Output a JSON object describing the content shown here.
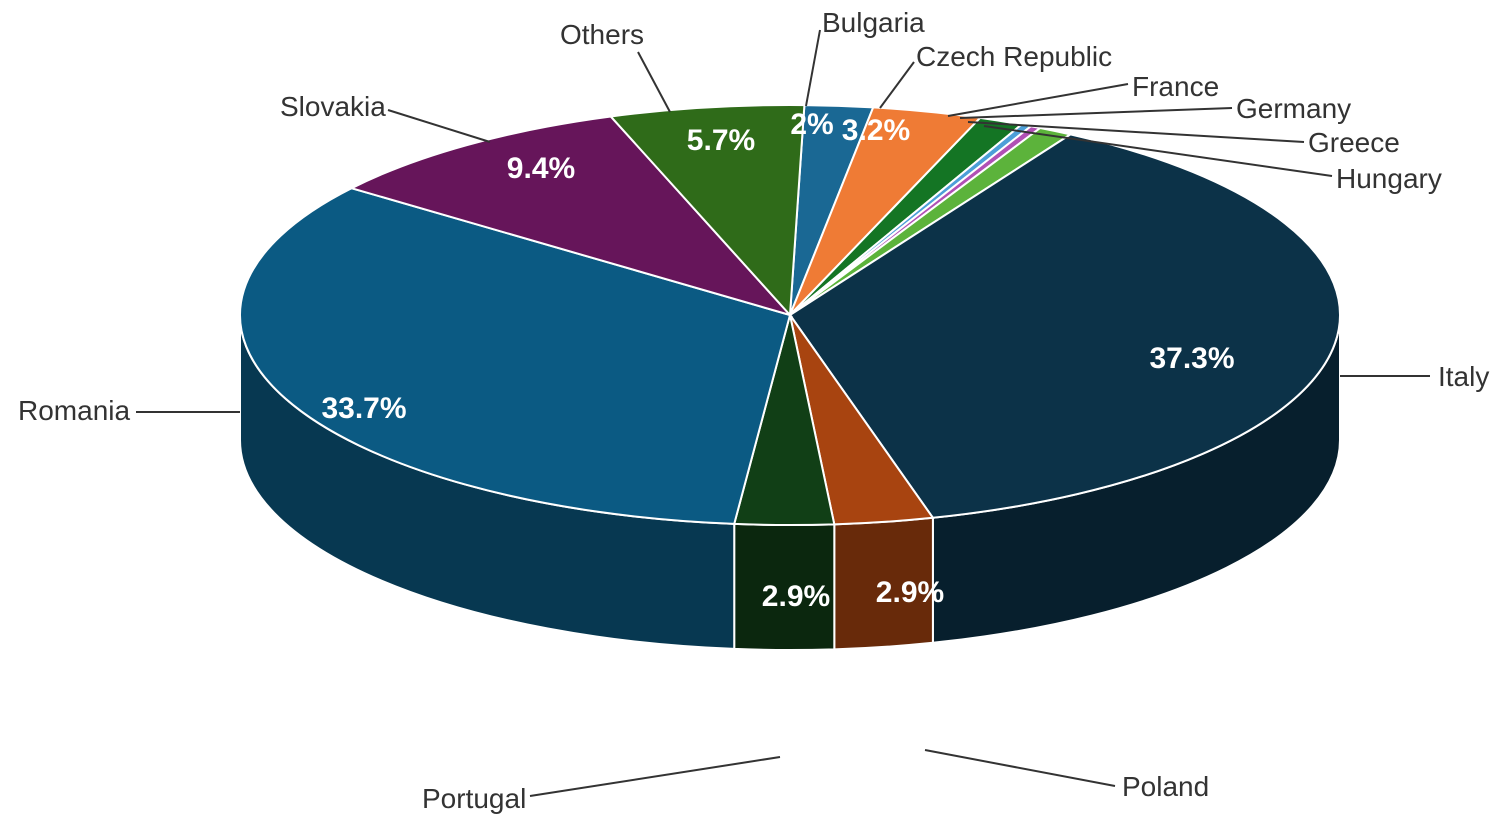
{
  "chart_data": {
    "type": "pie",
    "title": "",
    "legend": "none",
    "slices": [
      {
        "name": "Italy",
        "value": 37.3,
        "color": "#0c3248",
        "label": "37.3%"
      },
      {
        "name": "Poland",
        "value": 2.9,
        "color": "#a84410",
        "label": "2.9%"
      },
      {
        "name": "Portugal",
        "value": 2.9,
        "color": "#113f16",
        "label": "2.9%"
      },
      {
        "name": "Romania",
        "value": 33.7,
        "color": "#0b5a83",
        "label": "33.7%"
      },
      {
        "name": "Slovakia",
        "value": 9.4,
        "color": "#66155a",
        "label": "9.4%"
      },
      {
        "name": "Others",
        "value": 5.7,
        "color": "#2f6b19",
        "label": "5.7%"
      },
      {
        "name": "Bulgaria",
        "value": 2.0,
        "color": "#1a6894",
        "label": "2%"
      },
      {
        "name": "Czech Republic",
        "value": 3.2,
        "color": "#ef7b35",
        "label": "3.2%"
      },
      {
        "name": "France",
        "value": 1.3,
        "color": "#147524",
        "label": ""
      },
      {
        "name": "Germany",
        "value": 0.3,
        "color": "#4c9fd8",
        "label": ""
      },
      {
        "name": "Greece",
        "value": 0.3,
        "color": "#b150b5",
        "label": ""
      },
      {
        "name": "Hungary",
        "value": 1.0,
        "color": "#5cb33b",
        "label": ""
      }
    ]
  }
}
